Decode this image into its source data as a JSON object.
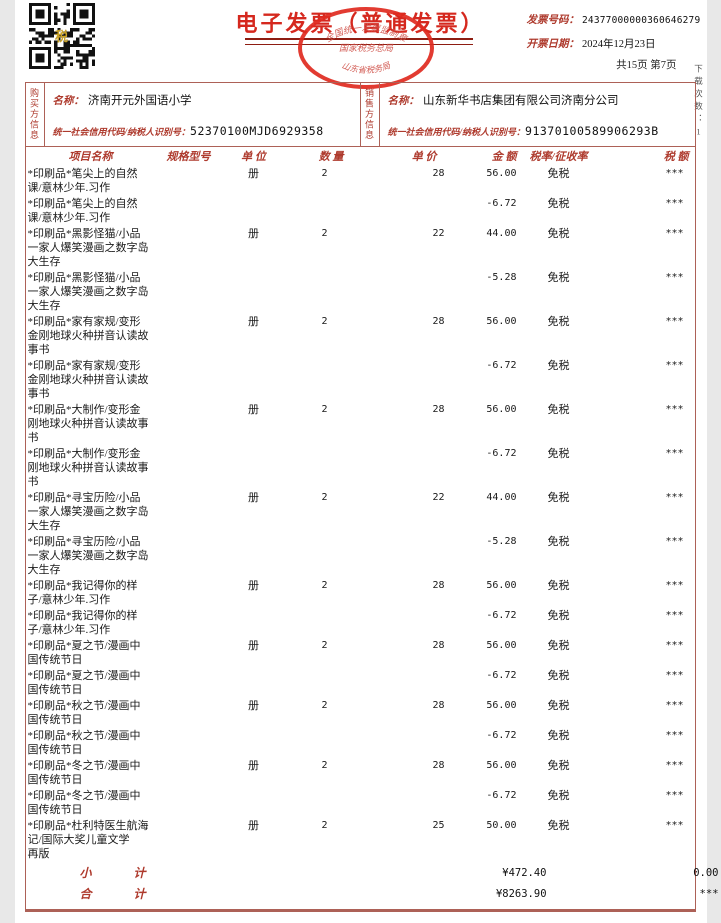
{
  "colors": {
    "accent_red": "#d5281e",
    "label_red": "#ae3a2d",
    "border_red": "#ad6157",
    "seal_red": "#e02b20",
    "qr_gold": "#c9a227"
  },
  "header": {
    "title": "电子发票（普通发票）",
    "invoice_no_label": "发票号码：",
    "invoice_no": "24377000000360646279",
    "date_label": "开票日期：",
    "date": "2024年12月23日",
    "page_info": "共15页  第7页",
    "download_count": "下载次数：1",
    "qr_center_glyph": "税"
  },
  "seal": {
    "top_text": "全国统一发票监制章",
    "middle_text": "国家税务总局",
    "bottom_text": "山东省税务局"
  },
  "buyer": {
    "side_label": "购买方信息",
    "name_label": "名称：",
    "name": "济南开元外国语小学",
    "tax_id_label": "统一社会信用代码/纳税人识别号：",
    "tax_id": "52370100MJD6929358"
  },
  "seller": {
    "side_label": "销售方信息",
    "name_label": "名称：",
    "name": "山东新华书店集团有限公司济南分公司",
    "tax_id_label": "统一社会信用代码/纳税人识别号：",
    "tax_id": "91370100589906293B"
  },
  "table": {
    "headers": [
      "项目名称",
      "规格型号",
      "单 位",
      "数 量",
      "单 价",
      "金 额",
      "税率/征收率",
      "税 额"
    ],
    "rows": [
      {
        "name": "*印刷品*笔尖上的自然\n课/意林少年.习作",
        "spec": "",
        "unit": "册",
        "qty": "2",
        "price": "28",
        "amount": "56.00",
        "rate": "免税",
        "tax": "***"
      },
      {
        "name": "*印刷品*笔尖上的自然\n课/意林少年.习作",
        "spec": "",
        "unit": "",
        "qty": "",
        "price": "",
        "amount": "-6.72",
        "rate": "免税",
        "tax": "***"
      },
      {
        "name": "*印刷品*黑影怪猫/小品\n一家人爆笑漫画之数字岛\n大生存",
        "spec": "",
        "unit": "册",
        "qty": "2",
        "price": "22",
        "amount": "44.00",
        "rate": "免税",
        "tax": "***"
      },
      {
        "name": "*印刷品*黑影怪猫/小品\n一家人爆笑漫画之数字岛\n大生存",
        "spec": "",
        "unit": "",
        "qty": "",
        "price": "",
        "amount": "-5.28",
        "rate": "免税",
        "tax": "***"
      },
      {
        "name": "*印刷品*家有家规/变形\n金刚地球火种拼音认读故\n事书",
        "spec": "",
        "unit": "册",
        "qty": "2",
        "price": "28",
        "amount": "56.00",
        "rate": "免税",
        "tax": "***"
      },
      {
        "name": "*印刷品*家有家规/变形\n金刚地球火种拼音认读故\n事书",
        "spec": "",
        "unit": "",
        "qty": "",
        "price": "",
        "amount": "-6.72",
        "rate": "免税",
        "tax": "***"
      },
      {
        "name": "*印刷品*大制作/变形金\n刚地球火种拼音认读故事\n书",
        "spec": "",
        "unit": "册",
        "qty": "2",
        "price": "28",
        "amount": "56.00",
        "rate": "免税",
        "tax": "***"
      },
      {
        "name": "*印刷品*大制作/变形金\n刚地球火种拼音认读故事\n书",
        "spec": "",
        "unit": "",
        "qty": "",
        "price": "",
        "amount": "-6.72",
        "rate": "免税",
        "tax": "***"
      },
      {
        "name": "*印刷品*寻宝历险/小品\n一家人爆笑漫画之数字岛\n大生存",
        "spec": "",
        "unit": "册",
        "qty": "2",
        "price": "22",
        "amount": "44.00",
        "rate": "免税",
        "tax": "***"
      },
      {
        "name": "*印刷品*寻宝历险/小品\n一家人爆笑漫画之数字岛\n大生存",
        "spec": "",
        "unit": "",
        "qty": "",
        "price": "",
        "amount": "-5.28",
        "rate": "免税",
        "tax": "***"
      },
      {
        "name": "*印刷品*我记得你的样\n子/意林少年.习作",
        "spec": "",
        "unit": "册",
        "qty": "2",
        "price": "28",
        "amount": "56.00",
        "rate": "免税",
        "tax": "***"
      },
      {
        "name": "*印刷品*我记得你的样\n子/意林少年.习作",
        "spec": "",
        "unit": "",
        "qty": "",
        "price": "",
        "amount": "-6.72",
        "rate": "免税",
        "tax": "***"
      },
      {
        "name": "*印刷品*夏之节/漫画中\n国传统节日",
        "spec": "",
        "unit": "册",
        "qty": "2",
        "price": "28",
        "amount": "56.00",
        "rate": "免税",
        "tax": "***"
      },
      {
        "name": "*印刷品*夏之节/漫画中\n国传统节日",
        "spec": "",
        "unit": "",
        "qty": "",
        "price": "",
        "amount": "-6.72",
        "rate": "免税",
        "tax": "***"
      },
      {
        "name": "*印刷品*秋之节/漫画中\n国传统节日",
        "spec": "",
        "unit": "册",
        "qty": "2",
        "price": "28",
        "amount": "56.00",
        "rate": "免税",
        "tax": "***"
      },
      {
        "name": "*印刷品*秋之节/漫画中\n国传统节日",
        "spec": "",
        "unit": "",
        "qty": "",
        "price": "",
        "amount": "-6.72",
        "rate": "免税",
        "tax": "***"
      },
      {
        "name": "*印刷品*冬之节/漫画中\n国传统节日",
        "spec": "",
        "unit": "册",
        "qty": "2",
        "price": "28",
        "amount": "56.00",
        "rate": "免税",
        "tax": "***"
      },
      {
        "name": "*印刷品*冬之节/漫画中\n国传统节日",
        "spec": "",
        "unit": "",
        "qty": "",
        "price": "",
        "amount": "-6.72",
        "rate": "免税",
        "tax": "***"
      },
      {
        "name": "*印刷品*杜利特医生航海\n记/国际大奖儿童文学\n再版",
        "spec": "",
        "unit": "册",
        "qty": "2",
        "price": "25",
        "amount": "50.00",
        "rate": "免税",
        "tax": "***"
      }
    ],
    "subtotal_label": "小计",
    "subtotal_amount": "¥472.40",
    "subtotal_tax": "0.00",
    "total_label": "合计",
    "total_amount": "¥8263.90",
    "total_tax": "***"
  }
}
